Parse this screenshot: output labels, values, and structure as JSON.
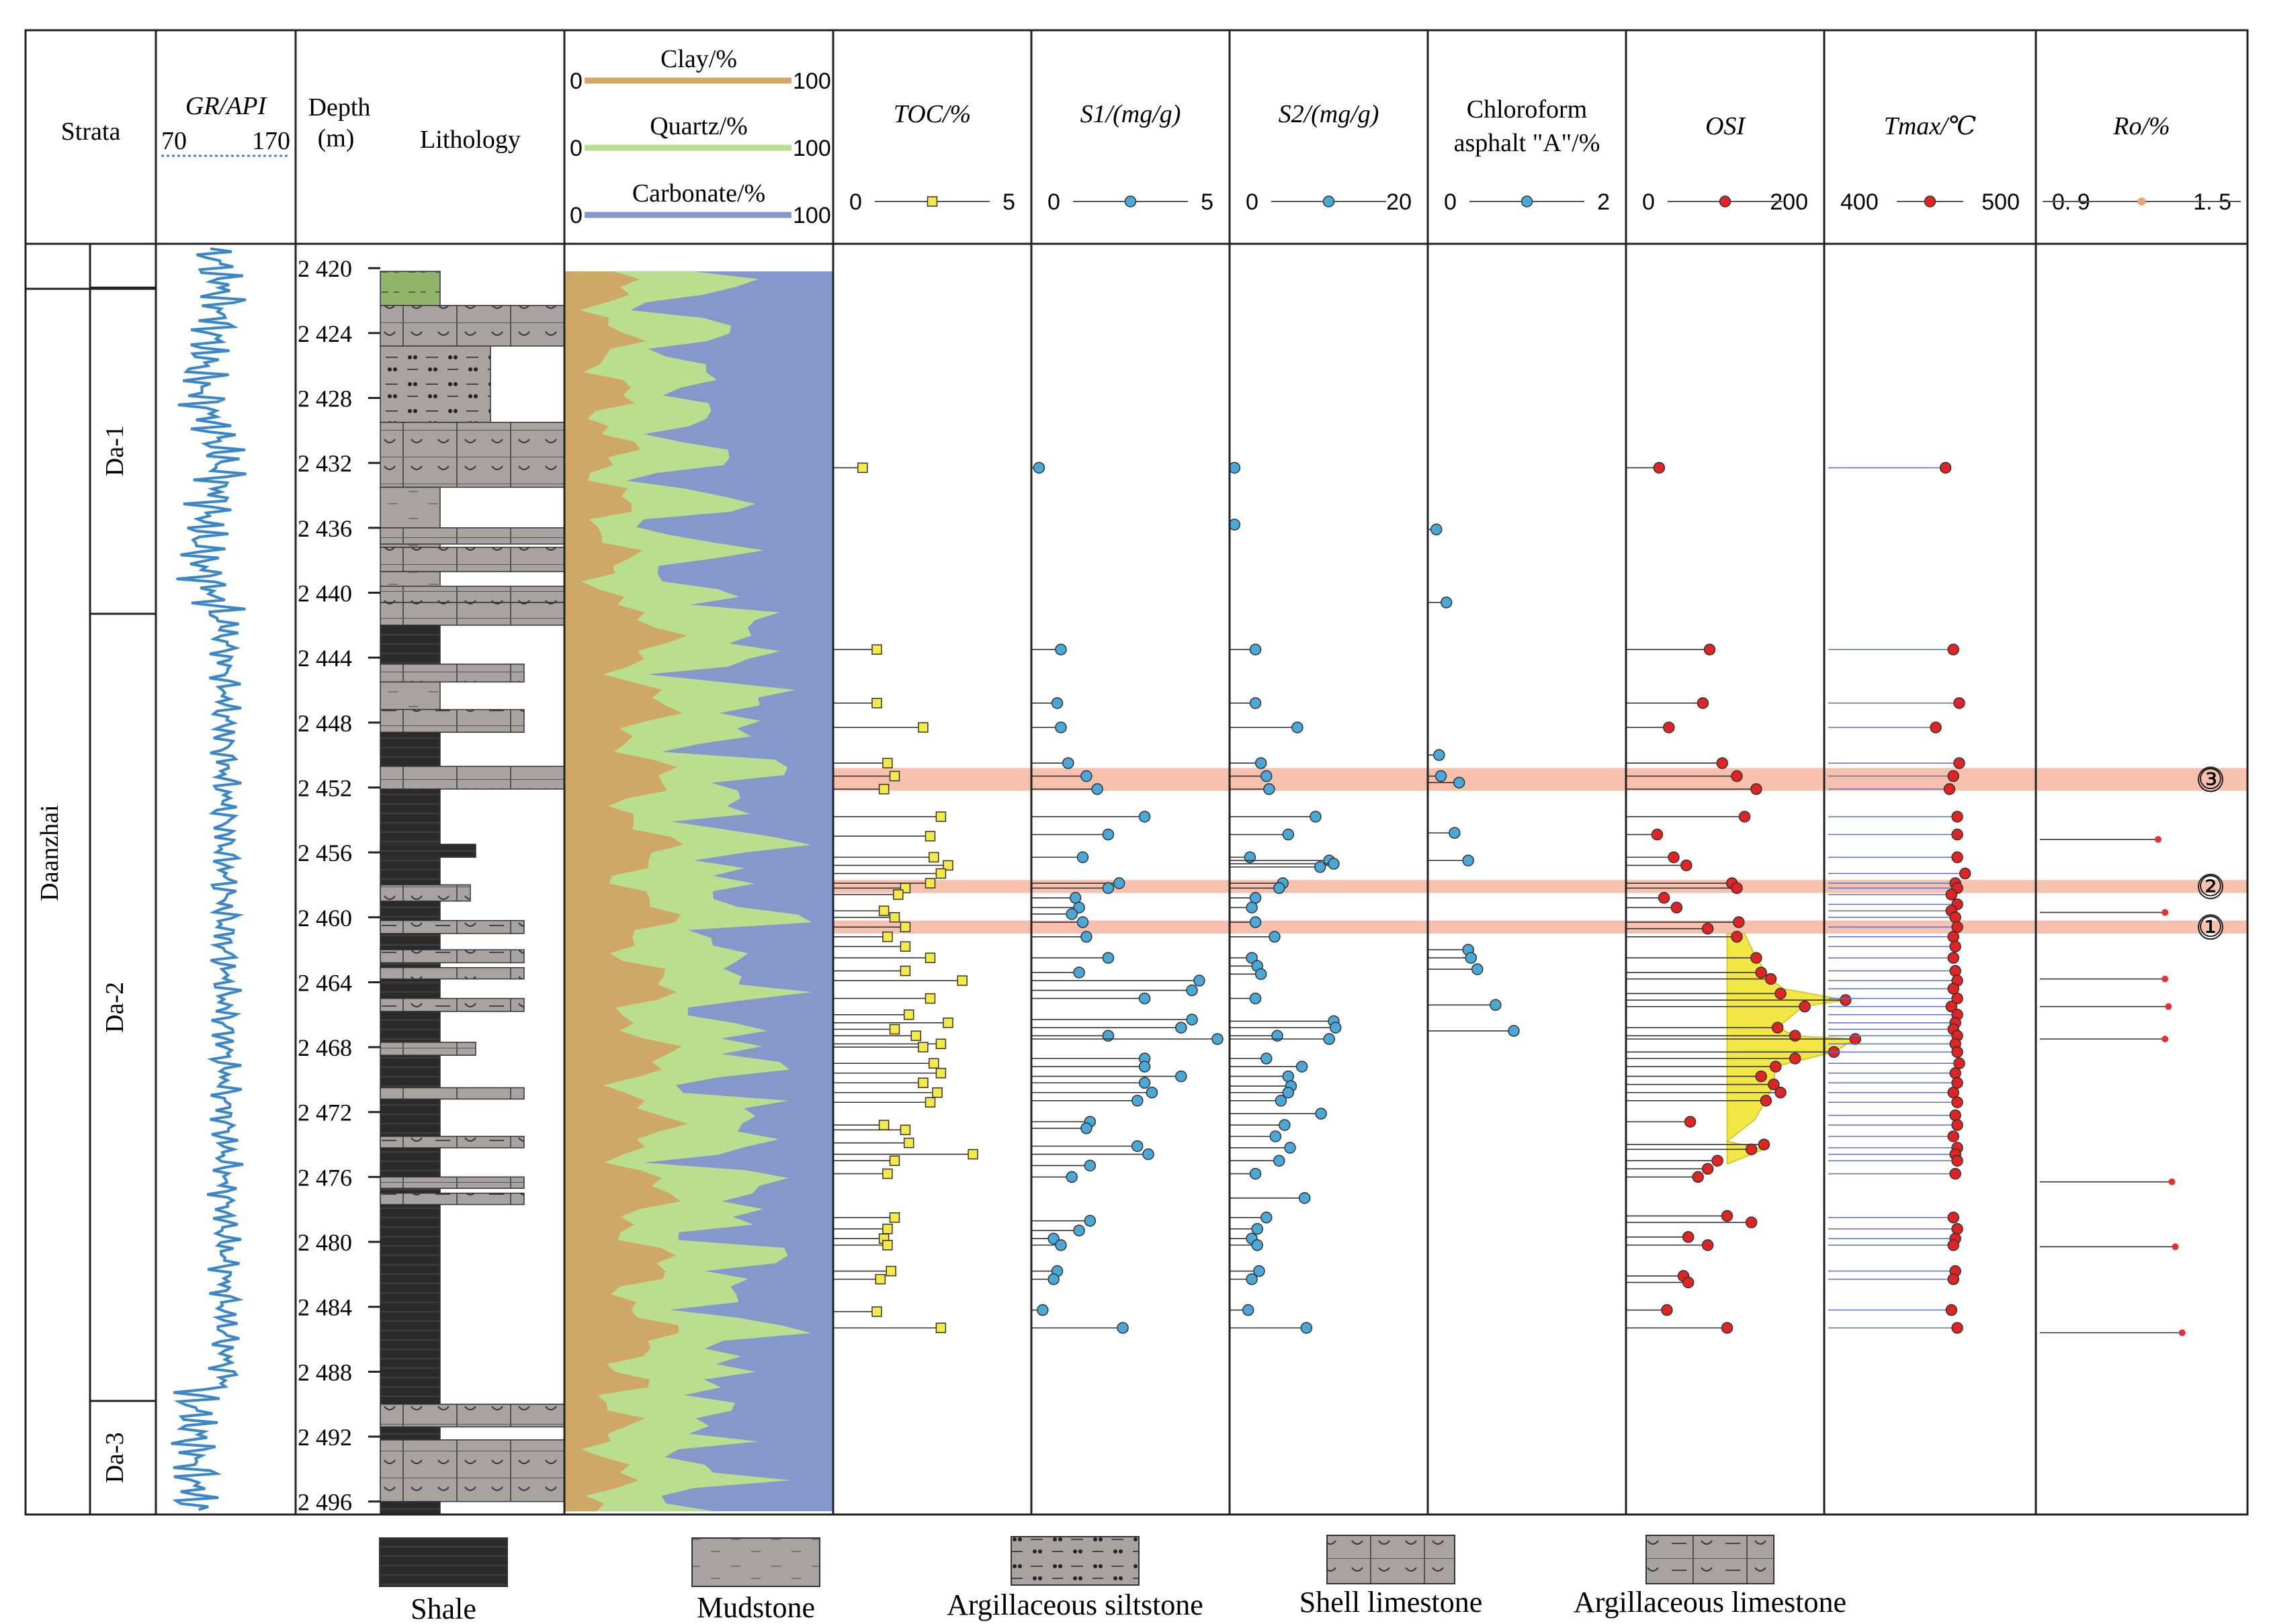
{
  "chart_data": {
    "type": "well-log",
    "headers": {
      "strata": "Strata",
      "gr": {
        "label": "GR/API",
        "min": "70",
        "max": "170"
      },
      "depth": {
        "label": "Depth",
        "unit": "(m)"
      },
      "lithology": "Lithology",
      "mineral": [
        {
          "label": "Clay/%",
          "min": "0",
          "max": "100",
          "color": "#cfa867"
        },
        {
          "label": "Quartz/%",
          "min": "0",
          "max": "100",
          "color": "#b9de8e"
        },
        {
          "label": "Carbonate/%",
          "min": "0",
          "max": "100",
          "color": "#8498cb"
        }
      ],
      "tracks": [
        {
          "key": "toc",
          "label": "TOC/%",
          "min": "0",
          "max": "5",
          "color": "#f5ea45"
        },
        {
          "key": "s1",
          "label": "S1/(mg/g)",
          "min": "0",
          "max": "5",
          "color": "#4aa8d8"
        },
        {
          "key": "s2",
          "label": "S2/(mg/g)",
          "min": "0",
          "max": "20",
          "color": "#4aa8d8"
        },
        {
          "key": "chloro",
          "label1": "Chloroform",
          "label2": "asphalt \"A\"/%",
          "min": "0",
          "max": "2",
          "color": "#4aa8d8"
        },
        {
          "key": "osi",
          "label": "OSI",
          "min": "0",
          "max": "200",
          "color": "#e02424"
        },
        {
          "key": "tmax",
          "label": "Tmax/℃",
          "min": "400",
          "max": "500",
          "color": "#e02424"
        },
        {
          "key": "ro",
          "label": "Ro/%",
          "min": "0. 9",
          "max": "1. 5",
          "color": "#f0a070"
        }
      ]
    },
    "depth_range": [
      2418.5,
      2496.8
    ],
    "depth_ticks": [
      "2 420",
      "2 424",
      "2 428",
      "2 432",
      "2 436",
      "2 440",
      "2 444",
      "2 448",
      "2 452",
      "2 456",
      "2 460",
      "2 464",
      "2 468",
      "2 472",
      "2 476",
      "2 480",
      "2 484",
      "2 488",
      "2 492",
      "2 496"
    ],
    "formation": "Daanzhai",
    "members": [
      "Da-1",
      "Da-2",
      "Da-3"
    ],
    "member_bounds": [
      2421.2,
      2441.3,
      2489.8,
      2496.8
    ],
    "highlight_intervals": [
      {
        "label": "③",
        "top": 2450.8,
        "bottom": 2452.2
      },
      {
        "label": "②",
        "top": 2457.7,
        "bottom": 2458.5
      },
      {
        "label": "①",
        "top": 2460.2,
        "bottom": 2461.0
      }
    ],
    "toc": [
      [
        2432.3,
        0.6
      ],
      [
        2443.5,
        1.0
      ],
      [
        2446.8,
        1.0
      ],
      [
        2448.3,
        2.3
      ],
      [
        2450.5,
        1.3
      ],
      [
        2451.3,
        1.5
      ],
      [
        2452.1,
        1.2
      ],
      [
        2453.8,
        2.8
      ],
      [
        2455.0,
        2.5
      ],
      [
        2456.3,
        2.6
      ],
      [
        2456.8,
        3.0
      ],
      [
        2457.3,
        2.8
      ],
      [
        2457.9,
        2.5
      ],
      [
        2458.2,
        1.8
      ],
      [
        2458.6,
        1.6
      ],
      [
        2459.6,
        1.2
      ],
      [
        2460.0,
        1.5
      ],
      [
        2460.6,
        1.8
      ],
      [
        2461.2,
        1.3
      ],
      [
        2461.8,
        1.8
      ],
      [
        2462.5,
        2.5
      ],
      [
        2463.3,
        1.8
      ],
      [
        2463.9,
        3.4
      ],
      [
        2465.0,
        2.5
      ],
      [
        2466.0,
        1.9
      ],
      [
        2466.5,
        3.0
      ],
      [
        2466.9,
        1.5
      ],
      [
        2467.3,
        2.1
      ],
      [
        2467.8,
        2.8
      ],
      [
        2468.0,
        2.3
      ],
      [
        2469.0,
        2.6
      ],
      [
        2469.6,
        2.8
      ],
      [
        2470.2,
        2.3
      ],
      [
        2470.8,
        2.7
      ],
      [
        2471.4,
        2.5
      ],
      [
        2472.8,
        1.2
      ],
      [
        2473.1,
        1.8
      ],
      [
        2473.9,
        1.9
      ],
      [
        2474.6,
        3.7
      ],
      [
        2475.0,
        1.5
      ],
      [
        2475.8,
        1.3
      ],
      [
        2478.5,
        1.5
      ],
      [
        2479.2,
        1.3
      ],
      [
        2479.8,
        1.2
      ],
      [
        2480.2,
        1.3
      ],
      [
        2481.8,
        1.4
      ],
      [
        2482.3,
        1.1
      ],
      [
        2484.3,
        1.0
      ],
      [
        2485.3,
        2.8
      ]
    ],
    "s1": [
      [
        2432.3,
        0.1
      ],
      [
        2443.5,
        0.7
      ],
      [
        2446.8,
        0.6
      ],
      [
        2448.3,
        0.7
      ],
      [
        2450.5,
        0.9
      ],
      [
        2451.3,
        1.4
      ],
      [
        2452.1,
        1.7
      ],
      [
        2453.8,
        3.0
      ],
      [
        2454.9,
        2.0
      ],
      [
        2456.3,
        1.3
      ],
      [
        2457.9,
        2.3
      ],
      [
        2458.2,
        2.0
      ],
      [
        2458.8,
        1.1
      ],
      [
        2459.4,
        1.2
      ],
      [
        2459.8,
        1.0
      ],
      [
        2460.3,
        1.3
      ],
      [
        2461.2,
        1.4
      ],
      [
        2462.5,
        2.0
      ],
      [
        2463.4,
        1.2
      ],
      [
        2463.9,
        4.5
      ],
      [
        2464.5,
        4.3
      ],
      [
        2465.0,
        3.0
      ],
      [
        2466.3,
        4.3
      ],
      [
        2466.8,
        4.0
      ],
      [
        2467.3,
        2.0
      ],
      [
        2467.5,
        5.0
      ],
      [
        2468.7,
        3.0
      ],
      [
        2469.2,
        3.0
      ],
      [
        2469.8,
        4.0
      ],
      [
        2470.2,
        3.0
      ],
      [
        2470.8,
        3.2
      ],
      [
        2471.3,
        2.8
      ],
      [
        2472.6,
        1.5
      ],
      [
        2473.0,
        1.4
      ],
      [
        2474.1,
        2.8
      ],
      [
        2474.6,
        3.1
      ],
      [
        2475.3,
        1.5
      ],
      [
        2476.0,
        1.0
      ],
      [
        2478.7,
        1.5
      ],
      [
        2479.3,
        1.2
      ],
      [
        2479.8,
        0.5
      ],
      [
        2480.2,
        0.7
      ],
      [
        2481.8,
        0.6
      ],
      [
        2482.3,
        0.5
      ],
      [
        2484.2,
        0.2
      ],
      [
        2485.3,
        2.4
      ]
    ],
    "s2": [
      [
        2432.3,
        0.1
      ],
      [
        2435.8,
        0.1
      ],
      [
        2443.5,
        2.4
      ],
      [
        2446.8,
        2.4
      ],
      [
        2448.3,
        7.0
      ],
      [
        2450.5,
        3.0
      ],
      [
        2451.3,
        3.6
      ],
      [
        2452.1,
        3.9
      ],
      [
        2453.8,
        9.0
      ],
      [
        2454.9,
        6.0
      ],
      [
        2456.3,
        1.8
      ],
      [
        2456.5,
        10.5
      ],
      [
        2456.7,
        11.0
      ],
      [
        2456.9,
        9.5
      ],
      [
        2457.9,
        5.4
      ],
      [
        2458.2,
        5.0
      ],
      [
        2458.8,
        2.4
      ],
      [
        2459.4,
        2.0
      ],
      [
        2460.3,
        2.4
      ],
      [
        2461.2,
        4.5
      ],
      [
        2462.5,
        2.0
      ],
      [
        2463.0,
        2.6
      ],
      [
        2463.5,
        3.0
      ],
      [
        2465.0,
        2.4
      ],
      [
        2466.4,
        11.0
      ],
      [
        2466.8,
        11.2
      ],
      [
        2467.3,
        4.8
      ],
      [
        2467.5,
        10.5
      ],
      [
        2468.7,
        3.6
      ],
      [
        2469.2,
        7.5
      ],
      [
        2469.8,
        6.0
      ],
      [
        2470.4,
        6.3
      ],
      [
        2470.8,
        6.0
      ],
      [
        2471.3,
        5.2
      ],
      [
        2472.1,
        9.6
      ],
      [
        2472.8,
        5.6
      ],
      [
        2473.5,
        4.6
      ],
      [
        2474.2,
        6.2
      ],
      [
        2475.0,
        5.0
      ],
      [
        2475.8,
        2.4
      ],
      [
        2477.3,
        7.8
      ],
      [
        2478.5,
        3.6
      ],
      [
        2479.2,
        2.6
      ],
      [
        2479.8,
        2.0
      ],
      [
        2480.2,
        2.6
      ],
      [
        2481.8,
        2.8
      ],
      [
        2482.3,
        2.0
      ],
      [
        2484.2,
        1.6
      ],
      [
        2485.3,
        8.0
      ]
    ],
    "chloro": [
      [
        2436.1,
        0.05
      ],
      [
        2440.6,
        0.16
      ],
      [
        2450.0,
        0.08
      ],
      [
        2451.3,
        0.1
      ],
      [
        2451.7,
        0.3
      ],
      [
        2454.8,
        0.25
      ],
      [
        2456.5,
        0.4
      ],
      [
        2462.0,
        0.4
      ],
      [
        2462.5,
        0.43
      ],
      [
        2463.2,
        0.5
      ],
      [
        2465.4,
        0.7
      ],
      [
        2467.0,
        0.9
      ]
    ],
    "osi": [
      [
        2432.3,
        30
      ],
      [
        2443.5,
        82
      ],
      [
        2446.8,
        75
      ],
      [
        2448.3,
        40
      ],
      [
        2450.5,
        95
      ],
      [
        2451.3,
        110
      ],
      [
        2452.1,
        130
      ],
      [
        2453.8,
        118
      ],
      [
        2454.9,
        28
      ],
      [
        2456.3,
        45
      ],
      [
        2456.8,
        58
      ],
      [
        2457.9,
        105
      ],
      [
        2458.2,
        110
      ],
      [
        2458.8,
        35
      ],
      [
        2459.4,
        48
      ],
      [
        2460.3,
        112
      ],
      [
        2460.7,
        80
      ],
      [
        2461.2,
        110
      ],
      [
        2462.5,
        130
      ],
      [
        2463.4,
        135
      ],
      [
        2463.8,
        145
      ],
      [
        2464.7,
        155
      ],
      [
        2465.1,
        222
      ],
      [
        2465.5,
        180
      ],
      [
        2466.8,
        152
      ],
      [
        2467.3,
        170
      ],
      [
        2467.5,
        232
      ],
      [
        2468.3,
        210
      ],
      [
        2468.7,
        170
      ],
      [
        2469.2,
        150
      ],
      [
        2469.8,
        135
      ],
      [
        2470.3,
        148
      ],
      [
        2470.8,
        155
      ],
      [
        2471.3,
        140
      ],
      [
        2472.6,
        62
      ],
      [
        2474.0,
        138
      ],
      [
        2474.3,
        125
      ],
      [
        2475.0,
        90
      ],
      [
        2475.5,
        80
      ],
      [
        2476.0,
        70
      ],
      [
        2478.4,
        100
      ],
      [
        2478.8,
        125
      ],
      [
        2479.7,
        60
      ],
      [
        2480.2,
        80
      ],
      [
        2482.1,
        55
      ],
      [
        2482.5,
        60
      ],
      [
        2484.2,
        38
      ],
      [
        2485.3,
        100
      ]
    ],
    "osi_fill": [
      [
        2461.0,
        118
      ],
      [
        2462.5,
        130
      ],
      [
        2463.8,
        145
      ],
      [
        2464.4,
        158
      ],
      [
        2465.1,
        222
      ],
      [
        2465.5,
        178
      ],
      [
        2466.8,
        152
      ],
      [
        2467.3,
        170
      ],
      [
        2467.5,
        232
      ],
      [
        2468.3,
        210
      ],
      [
        2469.2,
        150
      ],
      [
        2470.3,
        148
      ],
      [
        2471.3,
        140
      ],
      [
        2472.5,
        128
      ],
      [
        2473.8,
        100
      ],
      [
        2474.3,
        138
      ],
      [
        2475.2,
        100
      ]
    ],
    "tmax": [
      [
        2432.3,
        460
      ],
      [
        2443.5,
        464
      ],
      [
        2446.8,
        467
      ],
      [
        2448.3,
        455
      ],
      [
        2450.5,
        467
      ],
      [
        2451.3,
        464
      ],
      [
        2452.1,
        462
      ],
      [
        2453.8,
        466
      ],
      [
        2454.9,
        466
      ],
      [
        2456.3,
        466
      ],
      [
        2457.3,
        470
      ],
      [
        2457.9,
        465
      ],
      [
        2458.2,
        466
      ],
      [
        2458.6,
        463
      ],
      [
        2459.2,
        466
      ],
      [
        2459.6,
        463
      ],
      [
        2460.0,
        465
      ],
      [
        2460.6,
        466
      ],
      [
        2461.2,
        464
      ],
      [
        2461.8,
        465
      ],
      [
        2462.5,
        464
      ],
      [
        2463.3,
        465
      ],
      [
        2463.9,
        466
      ],
      [
        2464.4,
        464
      ],
      [
        2465.0,
        466
      ],
      [
        2465.5,
        463
      ],
      [
        2466.0,
        466
      ],
      [
        2466.5,
        465
      ],
      [
        2466.9,
        464
      ],
      [
        2467.3,
        466
      ],
      [
        2467.8,
        465
      ],
      [
        2468.3,
        466
      ],
      [
        2469.0,
        467
      ],
      [
        2469.6,
        465
      ],
      [
        2470.2,
        466
      ],
      [
        2470.8,
        464
      ],
      [
        2471.4,
        466
      ],
      [
        2472.2,
        465
      ],
      [
        2472.8,
        466
      ],
      [
        2473.5,
        464
      ],
      [
        2474.2,
        466
      ],
      [
        2474.6,
        465
      ],
      [
        2475.0,
        466
      ],
      [
        2475.8,
        465
      ],
      [
        2478.5,
        464
      ],
      [
        2479.2,
        466
      ],
      [
        2479.8,
        465
      ],
      [
        2480.2,
        464
      ],
      [
        2481.8,
        465
      ],
      [
        2482.3,
        464
      ],
      [
        2484.2,
        463
      ],
      [
        2485.3,
        466
      ]
    ],
    "ro": [
      [
        2455.2,
        1.24
      ],
      [
        2459.7,
        1.26
      ],
      [
        2463.8,
        1.26
      ],
      [
        2465.5,
        1.27
      ],
      [
        2467.5,
        1.26
      ],
      [
        2476.3,
        1.28
      ],
      [
        2480.3,
        1.29
      ],
      [
        2485.6,
        1.31
      ]
    ]
  },
  "legend": [
    {
      "key": "shale",
      "label": "Shale"
    },
    {
      "key": "mudstone",
      "label": "Mudstone"
    },
    {
      "key": "siltstone",
      "label": "Argillaceous siltstone"
    },
    {
      "key": "shell",
      "label": "Shell limestone"
    },
    {
      "key": "arglime",
      "label": "Argillaceous limestone"
    }
  ]
}
